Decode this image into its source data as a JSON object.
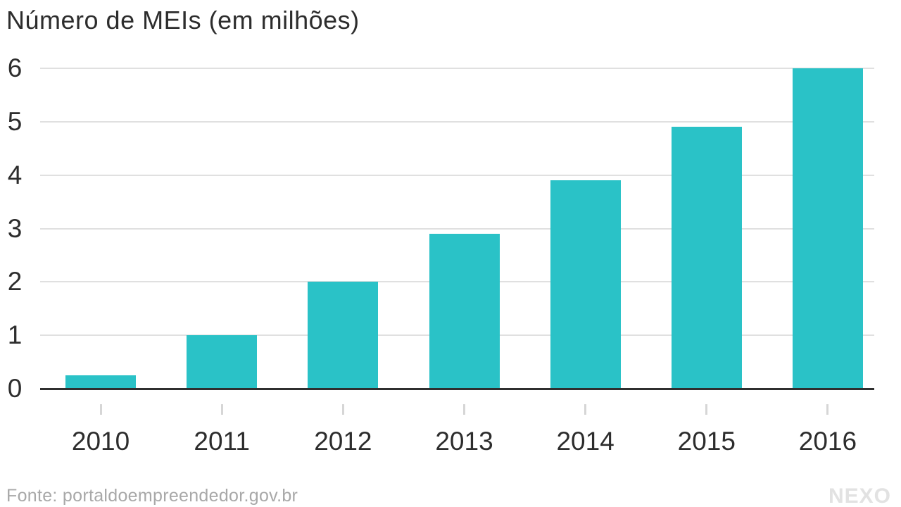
{
  "title": "Número de MEIs (em milhões)",
  "footer": {
    "source": "Fonte: portaldoempreendedor.gov.br",
    "brand": "NEXO"
  },
  "colors": {
    "bar": "#2ac2c7",
    "gridline": "#e0e0e0",
    "axis": "#2f2f2f",
    "tick": "#d6d6d6",
    "title_text": "#2d2d2d",
    "source_text": "#a8a8a8",
    "brand_text": "#e2e2e2"
  },
  "chart_data": {
    "type": "bar",
    "categories": [
      "2010",
      "2011",
      "2012",
      "2013",
      "2014",
      "2015",
      "2016"
    ],
    "values": [
      0.25,
      1.0,
      2.0,
      2.9,
      3.9,
      4.9,
      6.0
    ],
    "title": "Número de MEIs (em milhões)",
    "xlabel": "",
    "ylabel": "",
    "ylim": [
      0,
      6
    ],
    "yticks": [
      0,
      1,
      2,
      3,
      4,
      5,
      6
    ],
    "gridline_values": [
      1,
      2,
      3,
      4,
      5,
      6
    ],
    "grid": true,
    "legend": false,
    "bar_color": "#2ac2c7"
  }
}
